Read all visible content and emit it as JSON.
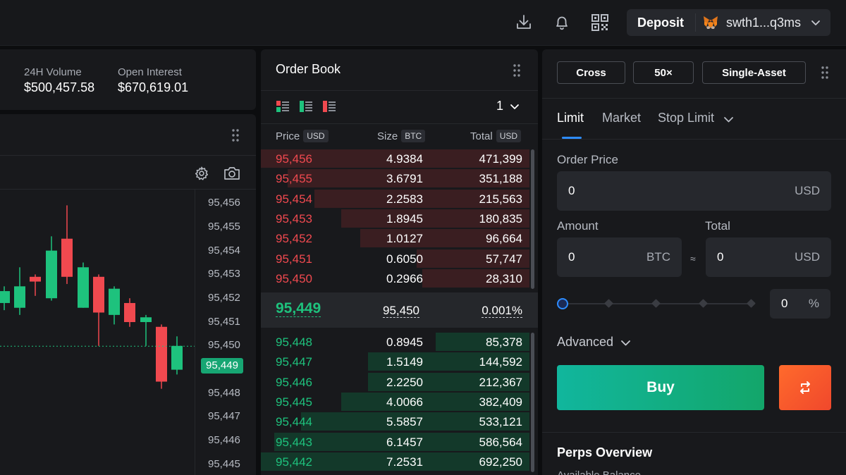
{
  "topbar": {
    "icons": [
      "download-icon",
      "bell-icon",
      "qr-code-icon"
    ],
    "deposit_label": "Deposit",
    "wallet_address": "swth1...q3ms"
  },
  "stats": {
    "volume_label": "24H Volume",
    "volume_value": "$500,457.58",
    "oi_label": "Open Interest",
    "oi_value": "$670,619.01"
  },
  "chart": {
    "axis_labels": [
      "95,456",
      "95,455",
      "95,454",
      "95,453",
      "95,452",
      "95,451",
      "95,450",
      "95,448",
      "95,447",
      "95,446",
      "95,445"
    ],
    "current_price": "95,449",
    "colors": {
      "up": "#1ec27d",
      "down": "#f0494f"
    },
    "candles": [
      {
        "o": 95450.8,
        "c": 95451.3,
        "h": 95451.5,
        "l": 95450.5
      },
      {
        "o": 95450.6,
        "c": 95451.5,
        "h": 95452.3,
        "l": 95450.3
      },
      {
        "o": 95451.9,
        "c": 95451.7,
        "h": 95452.0,
        "l": 95451.1
      },
      {
        "o": 95451.0,
        "c": 95453.0,
        "h": 95453.6,
        "l": 95450.9
      },
      {
        "o": 95453.5,
        "c": 95451.9,
        "h": 95454.9,
        "l": 95451.6
      },
      {
        "o": 95450.6,
        "c": 95452.3,
        "h": 95452.5,
        "l": 95450.6
      },
      {
        "o": 95451.9,
        "c": 95450.4,
        "h": 95452.0,
        "l": 95449.0
      },
      {
        "o": 95450.3,
        "c": 95451.4,
        "h": 95451.5,
        "l": 95449.9
      },
      {
        "o": 95450.8,
        "c": 95450.0,
        "h": 95451.0,
        "l": 95449.8
      },
      {
        "o": 95450.0,
        "c": 95450.2,
        "h": 95450.3,
        "l": 95449.0
      },
      {
        "o": 95449.8,
        "c": 95447.5,
        "h": 95449.9,
        "l": 95447.2
      },
      {
        "o": 95448.0,
        "c": 95449.0,
        "h": 95449.4,
        "l": 95447.8
      }
    ]
  },
  "orderbook": {
    "title": "Order Book",
    "precision": "1",
    "headers": {
      "price": "Price",
      "size": "Size",
      "total": "Total",
      "price_unit": "USD",
      "size_unit": "BTC",
      "total_unit": "USD"
    },
    "asks": [
      {
        "price": "95,456",
        "size": "4.9384",
        "total": "471,399",
        "depth": 1.0
      },
      {
        "price": "95,455",
        "size": "3.6791",
        "total": "351,188",
        "depth": 0.9
      },
      {
        "price": "95,454",
        "size": "2.2583",
        "total": "215,563",
        "depth": 0.8
      },
      {
        "price": "95,453",
        "size": "1.8945",
        "total": "180,835",
        "depth": 0.7
      },
      {
        "price": "95,452",
        "size": "1.0127",
        "total": "96,664",
        "depth": 0.63
      },
      {
        "price": "95,451",
        "size": "0.6050",
        "total": "57,747",
        "depth": 0.42
      },
      {
        "price": "95,450",
        "size": "0.2966",
        "total": "28,310",
        "depth": 0.4
      }
    ],
    "spread": {
      "mid": "95,449",
      "mark": "95,450",
      "pct": "0.001%"
    },
    "bids": [
      {
        "price": "95,448",
        "size": "0.8945",
        "total": "85,378",
        "depth": 0.35
      },
      {
        "price": "95,447",
        "size": "1.5149",
        "total": "144,592",
        "depth": 0.6
      },
      {
        "price": "95,446",
        "size": "2.2250",
        "total": "212,367",
        "depth": 0.6
      },
      {
        "price": "95,445",
        "size": "4.0066",
        "total": "382,409",
        "depth": 0.7
      },
      {
        "price": "95,444",
        "size": "5.5857",
        "total": "533,121",
        "depth": 0.85
      },
      {
        "price": "95,443",
        "size": "6.1457",
        "total": "586,564",
        "depth": 0.95
      },
      {
        "price": "95,442",
        "size": "7.2531",
        "total": "692,250",
        "depth": 1.0
      }
    ]
  },
  "order_form": {
    "margin_mode": "Cross",
    "leverage": "50×",
    "asset_mode": "Single-Asset",
    "tabs": [
      "Limit",
      "Market",
      "Stop Limit"
    ],
    "active_tab": "Limit",
    "order_price_label": "Order Price",
    "order_price_value": "0",
    "order_price_unit": "USD",
    "amount_label": "Amount",
    "amount_value": "0",
    "amount_unit": "BTC",
    "approx": "≈",
    "total_label": "Total",
    "total_value": "0",
    "total_unit": "USD",
    "slider_value": "0",
    "slider_unit": "%",
    "slider_fraction": 0,
    "advanced_label": "Advanced",
    "buy_label": "Buy",
    "perps_title": "Perps Overview",
    "available_label": "Available Balance"
  }
}
